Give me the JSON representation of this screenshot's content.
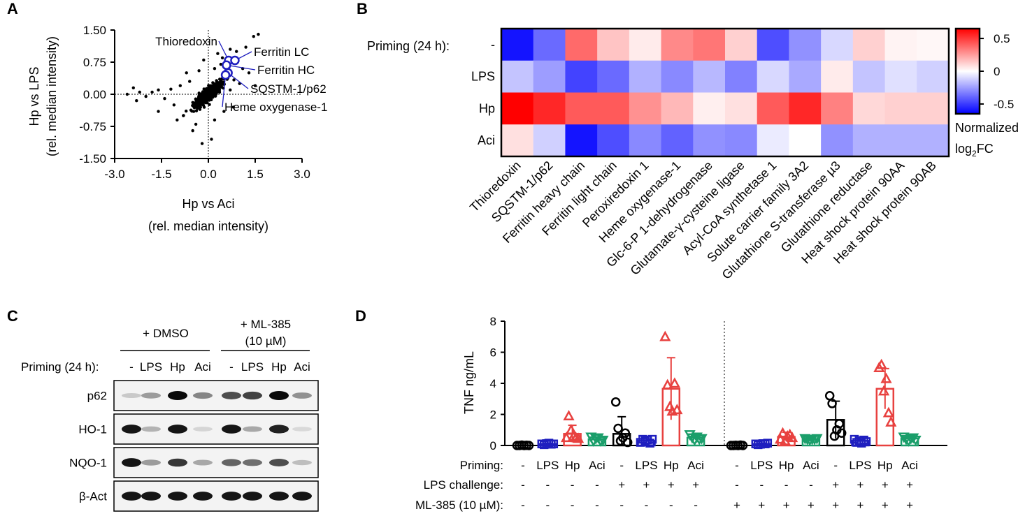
{
  "panels": {
    "A": {
      "label": "A",
      "chart_data": {
        "type": "scatter",
        "xlabel_line1": "Hp vs Aci",
        "xlabel_line2": "(rel. median intensity)",
        "ylabel_line1": "Hp vs LPS",
        "ylabel_line2": "(rel. median intensity)",
        "xlim": [
          -3.0,
          3.0
        ],
        "ylim": [
          -1.5,
          1.5
        ],
        "xticks": [
          -3.0,
          -1.5,
          0.0,
          1.5,
          3.0
        ],
        "xtick_labels": [
          "-3.0",
          "-1.5",
          "0.0",
          "1.5",
          "3.0"
        ],
        "yticks": [
          1.5,
          0.75,
          0.0,
          -0.75,
          -1.5
        ],
        "ytick_labels": [
          "1.50",
          "0.75",
          "0.00",
          "-0.75",
          "-1.50"
        ],
        "highlighted": [
          {
            "label": "Thioredoxin",
            "x": 0.65,
            "y": 0.79
          },
          {
            "label": "Ferritin LC",
            "x": 0.85,
            "y": 0.79
          },
          {
            "label": "Ferritin HC",
            "x": 0.58,
            "y": 0.68
          },
          {
            "label": "SQSTM-1/p62",
            "x": 0.63,
            "y": 0.5
          },
          {
            "label": "Heme oxygenase-1",
            "x": 0.55,
            "y": 0.45
          }
        ],
        "points": [
          [
            1.45,
            1.35
          ],
          [
            1.6,
            1.4
          ],
          [
            1.2,
            1.1
          ],
          [
            0.9,
            1.0
          ],
          [
            0.7,
            1.05
          ],
          [
            0.3,
            0.95
          ],
          [
            1.1,
            0.6
          ],
          [
            1.3,
            0.5
          ],
          [
            0.2,
            0.6
          ],
          [
            0.4,
            0.7
          ],
          [
            -0.3,
            0.55
          ],
          [
            -0.7,
            0.5
          ],
          [
            -0.9,
            0.2
          ],
          [
            -1.2,
            0.12
          ],
          [
            -1.6,
            0.1
          ],
          [
            -2.4,
            0.15
          ],
          [
            -2.2,
            0.05
          ],
          [
            -2.0,
            -0.05
          ],
          [
            -2.6,
            0.0
          ],
          [
            -1.8,
            0.05
          ],
          [
            -1.4,
            -0.1
          ],
          [
            -1.1,
            -0.25
          ],
          [
            -0.8,
            -0.5
          ],
          [
            -0.5,
            -0.85
          ],
          [
            -0.2,
            -1.15
          ],
          [
            0.1,
            -1.05
          ],
          [
            -0.4,
            -0.7
          ],
          [
            -1.0,
            -0.6
          ],
          [
            -2.3,
            -0.15
          ],
          [
            0.5,
            -0.4
          ],
          [
            0.8,
            -0.3
          ],
          [
            1.0,
            0.25
          ],
          [
            0.6,
            0.35
          ],
          [
            1.5,
            0.2
          ],
          [
            -0.6,
            0.3
          ],
          [
            0.2,
            -0.6
          ],
          [
            -0.15,
            0.8
          ],
          [
            0.45,
            0.85
          ],
          [
            -1.6,
            -0.4
          ],
          [
            0.3,
            0.1
          ],
          [
            -0.25,
            -0.3
          ],
          [
            0.7,
            0.1
          ]
        ]
      }
    },
    "B": {
      "label": "B",
      "chart_data": {
        "type": "heatmap",
        "row_header": "Priming (24 h):",
        "rows": [
          "-",
          "LPS",
          "Hp",
          "Aci"
        ],
        "columns": [
          "Thioredoxin",
          "SQSTM-1/p62",
          "Ferritin heavy chain",
          "Ferritin light chain",
          "Peroxiredoxin 1",
          "Heme oxygenase-1",
          "Glc-6-P 1-dehydrogenase",
          "Glutamate-γ-cysteine ligase",
          "Acyl-CoA synthetase 1",
          "Solute carrier family 3A2",
          "Glutathione S-transferase µ3",
          "Glutathione reductase",
          "Heat shock protein 90AA",
          "Heat shock protein 90AB"
        ],
        "values": [
          [
            -0.6,
            -0.38,
            0.38,
            0.15,
            0.05,
            0.3,
            0.35,
            0.12,
            -0.45,
            -0.28,
            -0.1,
            0.12,
            0.03,
            0.02
          ],
          [
            -0.15,
            -0.25,
            -0.48,
            -0.38,
            -0.2,
            -0.3,
            -0.18,
            -0.32,
            -0.1,
            -0.22,
            0.05,
            -0.15,
            -0.08,
            -0.12
          ],
          [
            0.65,
            0.55,
            0.42,
            0.42,
            0.28,
            0.18,
            0.04,
            0.08,
            0.42,
            0.55,
            0.32,
            0.1,
            0.12,
            0.12
          ],
          [
            0.08,
            -0.12,
            -0.6,
            -0.45,
            -0.3,
            -0.4,
            -0.28,
            -0.3,
            -0.05,
            0.0,
            -0.28,
            -0.2,
            -0.2,
            -0.2
          ]
        ],
        "colorbar": {
          "min": -0.65,
          "max": 0.65,
          "ticks": [
            "0.5",
            "0",
            "-0.5"
          ],
          "tick_values": [
            0.5,
            0,
            -0.5
          ],
          "label_line1": "Normalized",
          "label_line2_main": "log",
          "label_line2_sub": "2",
          "label_line2_end": "FC",
          "low_color": "#0000ff",
          "mid_color": "#ffffff",
          "high_color": "#ff0000"
        }
      }
    },
    "C": {
      "label": "C",
      "group1": "+ DMSO",
      "group2_line1": "+ ML-385",
      "group2_line2": "(10 µM)",
      "priming_label": "Priming (24 h):",
      "lane_labels": [
        "-",
        "LPS",
        "Hp",
        "Aci",
        "-",
        "LPS",
        "Hp",
        "Aci"
      ],
      "blots": [
        {
          "name": "p62",
          "intensities": [
            0.15,
            0.35,
            1.0,
            0.45,
            0.7,
            0.75,
            1.0,
            0.4
          ]
        },
        {
          "name": "HO-1",
          "intensities": [
            0.95,
            0.25,
            0.95,
            0.1,
            0.95,
            0.3,
            0.9,
            0.08
          ]
        },
        {
          "name": "NQO-1",
          "intensities": [
            0.95,
            0.35,
            0.8,
            0.3,
            0.6,
            0.55,
            0.7,
            0.2
          ]
        },
        {
          "name": "β-Act",
          "intensities": [
            0.95,
            0.95,
            0.95,
            0.95,
            0.95,
            0.95,
            0.95,
            0.95
          ]
        }
      ]
    },
    "D": {
      "label": "D",
      "chart_data": {
        "type": "bar",
        "ylabel": "TNF ng/mL",
        "ylim": [
          0,
          8
        ],
        "yticks": [
          0,
          2,
          4,
          6,
          8
        ],
        "priming_label": "Priming:",
        "challenge_label": "LPS challenge:",
        "ml_label": "ML-385 (10 µM):",
        "categories": [
          "-",
          "LPS",
          "Hp",
          "Aci",
          "-",
          "LPS",
          "Hp",
          "Aci",
          "-",
          "LPS",
          "Hp",
          "Aci",
          "-",
          "LPS",
          "Hp",
          "Aci"
        ],
        "lps_challenge": [
          "-",
          "-",
          "-",
          "-",
          "+",
          "+",
          "+",
          "+",
          "-",
          "-",
          "-",
          "-",
          "+",
          "+",
          "+",
          "+"
        ],
        "ml385": [
          "-",
          "-",
          "-",
          "-",
          "-",
          "-",
          "-",
          "-",
          "+",
          "+",
          "+",
          "+",
          "+",
          "+",
          "+",
          "+"
        ],
        "means": [
          0.0,
          0.1,
          0.75,
          0.4,
          0.75,
          0.3,
          3.65,
          0.5,
          0.0,
          0.1,
          0.55,
          0.4,
          1.65,
          0.3,
          3.65,
          0.45
        ],
        "sd": [
          0.02,
          0.05,
          0.55,
          0.15,
          1.1,
          0.12,
          2.0,
          0.15,
          0.02,
          0.05,
          0.3,
          0.08,
          1.2,
          0.12,
          1.3,
          0.1
        ],
        "points": [
          [
            0.0,
            0.0,
            0.02,
            0.0,
            0.01,
            0.0
          ],
          [
            0.1,
            0.05,
            0.12,
            0.15,
            0.08,
            0.1
          ],
          [
            0.5,
            1.9,
            1.0,
            0.6,
            0.5,
            0.45
          ],
          [
            0.55,
            0.3,
            0.45,
            0.5,
            0.3,
            0.35
          ],
          [
            2.8,
            1.1,
            0.3,
            0.5,
            0.8,
            0.2
          ],
          [
            0.2,
            0.4,
            0.3,
            0.35,
            0.15,
            0.4
          ],
          [
            7.0,
            3.9,
            2.5,
            2.2,
            4.0,
            2.3
          ],
          [
            0.7,
            0.5,
            0.35,
            0.55,
            0.4,
            0.45
          ],
          [
            0.0,
            0.0,
            0.01,
            0.0,
            0.02,
            0.0
          ],
          [
            0.1,
            0.05,
            0.08,
            0.12,
            0.1,
            0.15
          ],
          [
            0.4,
            0.8,
            0.3,
            0.6,
            0.7,
            0.5
          ],
          [
            0.45,
            0.4,
            0.35,
            0.4,
            0.4,
            0.45
          ],
          [
            3.2,
            2.7,
            0.6,
            1.0,
            1.4,
            0.8
          ],
          [
            0.4,
            0.2,
            0.3,
            0.15,
            0.35,
            0.25
          ],
          [
            5.0,
            5.2,
            3.5,
            4.3,
            2.1,
            1.5
          ],
          [
            0.55,
            0.4,
            0.3,
            0.45,
            0.5,
            0.35
          ]
        ],
        "colors": [
          "#000000",
          "#1f1fbf",
          "#e8413f",
          "#1a9e6a"
        ],
        "markers": [
          "circle",
          "square",
          "triangle-up",
          "triangle-down"
        ]
      }
    }
  }
}
